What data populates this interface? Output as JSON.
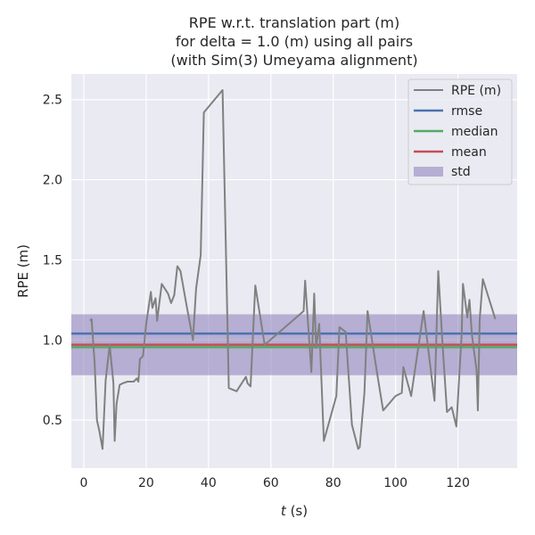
{
  "chart_data": {
    "type": "line",
    "title_lines": [
      "RPE w.r.t. translation part (m)",
      "for delta = 1.0 (m) using all pairs",
      "(with Sim(3) Umeyama alignment)"
    ],
    "xlabel_var": "t",
    "xlabel_unit": " (s)",
    "ylabel": "RPE (m)",
    "xlim": [
      -4,
      139
    ],
    "ylim": [
      0.2,
      2.66
    ],
    "xticks": [
      0,
      20,
      40,
      60,
      80,
      100,
      120
    ],
    "yticks": [
      0.5,
      1.0,
      1.5,
      2.0,
      2.5
    ],
    "ytick_labels": [
      "0.5",
      "1.0",
      "1.5",
      "2.0",
      "2.5"
    ],
    "grid": true,
    "legend_position": "top-right",
    "series": [
      {
        "name": "RPE (m)",
        "color": "#808080",
        "x": [
          2,
          2.5,
          3.5,
          4.2,
          5,
          6,
          7,
          8.3,
          9.5,
          9.9,
          10.5,
          11.5,
          12.5,
          14,
          16,
          17,
          17.5,
          18,
          19,
          20,
          21.5,
          22,
          23,
          23.5,
          25,
          27,
          28,
          29,
          30,
          31,
          33,
          35,
          36,
          37.5,
          38.5,
          44.5,
          46.5,
          49,
          52,
          52.5,
          53.5,
          55,
          58,
          70.5,
          71,
          73,
          73.9,
          74.5,
          75.5,
          77,
          81,
          82,
          84,
          86,
          88,
          88.5,
          90,
          91,
          94,
          96,
          100,
          102,
          102.5,
          105,
          109,
          112.5,
          113.7,
          115,
          116.5,
          118,
          119.5,
          121.2,
          121.6,
          123,
          123.7,
          124.5,
          126,
          126.4,
          127,
          128,
          132
        ],
        "y": [
          1.12,
          1.13,
          0.85,
          0.5,
          0.43,
          0.32,
          0.75,
          0.97,
          0.73,
          0.37,
          0.6,
          0.72,
          0.73,
          0.74,
          0.74,
          0.76,
          0.74,
          0.88,
          0.9,
          1.1,
          1.3,
          1.2,
          1.26,
          1.12,
          1.35,
          1.29,
          1.23,
          1.28,
          1.46,
          1.43,
          1.21,
          1.0,
          1.32,
          1.53,
          2.42,
          2.56,
          0.7,
          0.68,
          0.77,
          0.73,
          0.71,
          1.34,
          0.97,
          1.18,
          1.37,
          0.8,
          1.29,
          0.95,
          1.1,
          0.37,
          0.65,
          1.08,
          1.05,
          0.47,
          0.32,
          0.33,
          0.67,
          1.18,
          0.8,
          0.56,
          0.65,
          0.67,
          0.83,
          0.65,
          1.18,
          0.62,
          1.43,
          0.99,
          0.55,
          0.58,
          0.46,
          1.04,
          1.35,
          1.14,
          1.25,
          1.03,
          0.81,
          0.56,
          1.13,
          1.38,
          1.13
        ]
      }
    ],
    "stats": [
      {
        "name": "rmse",
        "value": 1.04,
        "color": "#4c72b0"
      },
      {
        "name": "median",
        "value": 0.955,
        "color": "#55a868"
      },
      {
        "name": "mean",
        "value": 0.97,
        "color": "#c44e52"
      }
    ],
    "std_band": {
      "name": "std",
      "low": 0.78,
      "high": 1.16,
      "color": "#8172b3"
    }
  }
}
